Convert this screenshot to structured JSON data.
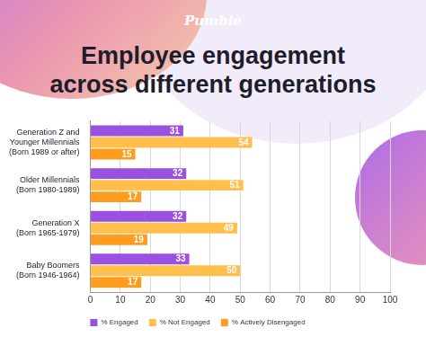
{
  "logo": "Pumble",
  "chart_data": {
    "type": "bar",
    "orientation": "horizontal",
    "title": "Employee engagement across different generations",
    "categories": [
      "Generation Z and Younger Millennials (Born 1989 or after)",
      "Older Millennials (Born 1980-1989)",
      "Generation X (Born 1965-1979)",
      "Baby Boomers (Born 1946-1964)"
    ],
    "series": [
      {
        "name": "% Engaged",
        "color": "#9b51e0",
        "values": [
          31,
          32,
          32,
          33
        ]
      },
      {
        "name": "% Not Engaged",
        "color": "#ffbf4d",
        "values": [
          54,
          51,
          49,
          50
        ]
      },
      {
        "name": "% Actively Disengaged",
        "color": "#ff9c1e",
        "values": [
          15,
          17,
          19,
          17
        ]
      }
    ],
    "xlim": [
      0,
      100
    ],
    "xticks": [
      0,
      10,
      20,
      30,
      40,
      50,
      60,
      70,
      80,
      90,
      100
    ],
    "grid": true,
    "legend": "bottom",
    "data_labels": true
  }
}
